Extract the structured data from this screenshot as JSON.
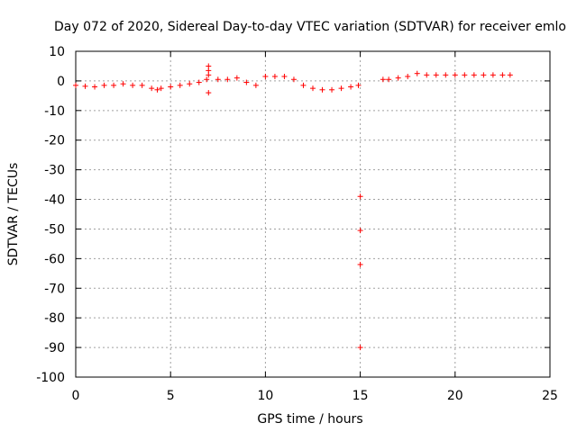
{
  "chart_data": {
    "type": "scatter",
    "title": "Day 072 of 2020, Sidereal Day-to-day VTEC variation (SDTVAR) for receiver emlo",
    "xlabel": "GPS time / hours",
    "ylabel": "SDTVAR / TECUs",
    "xlim": [
      0,
      25
    ],
    "ylim": [
      -100,
      10
    ],
    "xticks": [
      0,
      5,
      10,
      15,
      20,
      25
    ],
    "yticks": [
      10,
      0,
      -10,
      -20,
      -30,
      -40,
      -50,
      -60,
      -70,
      -80,
      -90,
      -100
    ],
    "grid": true,
    "marker": "+",
    "color": "#ff0000",
    "series": [
      {
        "name": "SDTVAR",
        "x": [
          0.0,
          0.5,
          1.0,
          1.5,
          2.0,
          2.5,
          3.0,
          3.5,
          4.0,
          4.3,
          4.5,
          5.0,
          5.5,
          6.0,
          6.5,
          6.9,
          7.0,
          7.0,
          7.0,
          7.0,
          7.5,
          8.0,
          8.5,
          9.0,
          9.5,
          10.0,
          10.5,
          11.0,
          11.5,
          12.0,
          12.5,
          13.0,
          13.5,
          14.0,
          14.5,
          14.9,
          15.0,
          15.0,
          15.0,
          15.0,
          16.2,
          16.5,
          17.0,
          17.5,
          18.0,
          18.5,
          19.0,
          19.5,
          20.0,
          20.5,
          21.0,
          21.5,
          22.0,
          22.5,
          22.9
        ],
        "y": [
          -1.5,
          -1.8,
          -2.0,
          -1.5,
          -1.5,
          -1.0,
          -1.5,
          -1.5,
          -2.5,
          -3.0,
          -2.5,
          -2.0,
          -1.5,
          -1.0,
          -0.5,
          0.5,
          5.0,
          3.5,
          2.0,
          -4.0,
          0.5,
          0.5,
          1.0,
          -0.5,
          -1.5,
          1.5,
          1.5,
          1.5,
          0.5,
          -1.5,
          -2.5,
          -3.0,
          -3.0,
          -2.5,
          -2.0,
          -1.5,
          -39.0,
          -50.5,
          -62.0,
          -90.0,
          0.5,
          0.5,
          1.0,
          1.5,
          2.5,
          2.0,
          2.0,
          2.0,
          2.0,
          2.0,
          2.0,
          2.0,
          2.0,
          2.0,
          2.0
        ]
      }
    ]
  }
}
